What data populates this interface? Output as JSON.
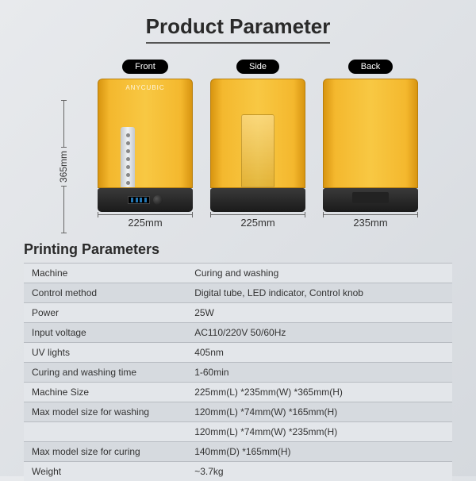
{
  "title": "Product Parameter",
  "height_label": "365mm",
  "brand": "ANYCUBIC",
  "views": [
    {
      "label": "Front",
      "width": "225mm",
      "type": "front"
    },
    {
      "label": "Side",
      "width": "225mm",
      "type": "side"
    },
    {
      "label": "Back",
      "width": "235mm",
      "type": "back"
    }
  ],
  "subheading": "Printing Parameters",
  "specs": [
    {
      "key": "Machine",
      "val": "Curing and washing"
    },
    {
      "key": "Control method",
      "val": "Digital tube, LED indicator, Control knob"
    },
    {
      "key": "Power",
      "val": "25W"
    },
    {
      "key": "Input voltage",
      "val": "AC110/220V   50/60Hz"
    },
    {
      "key": "UV lights",
      "val": "405nm"
    },
    {
      "key": "Curing and washing time",
      "val": "1-60min"
    },
    {
      "key": "Machine Size",
      "val": "225mm(L) *235mm(W) *365mm(H)"
    },
    {
      "key": "Max model size for washing",
      "val": "120mm(L) *74mm(W) *165mm(H)"
    },
    {
      "key": "",
      "val": "120mm(L) *74mm(W) *235mm(H)"
    },
    {
      "key": "Max model size for curing",
      "val": "140mm(D) *165mm(H)"
    },
    {
      "key": "Weight",
      "val": "~3.7kg"
    }
  ],
  "colors": {
    "cover_gradient": [
      "#d89510",
      "#f4b82e",
      "#f8c843"
    ],
    "base_gradient": [
      "#3a3a3a",
      "#1a1a1a"
    ],
    "bg_gradient": [
      "#e8eaed",
      "#d5d9de"
    ],
    "row_odd": "#e3e6ea",
    "row_even": "#d6dadf",
    "border": "#b8bcc2",
    "label_pill": "#000000"
  }
}
